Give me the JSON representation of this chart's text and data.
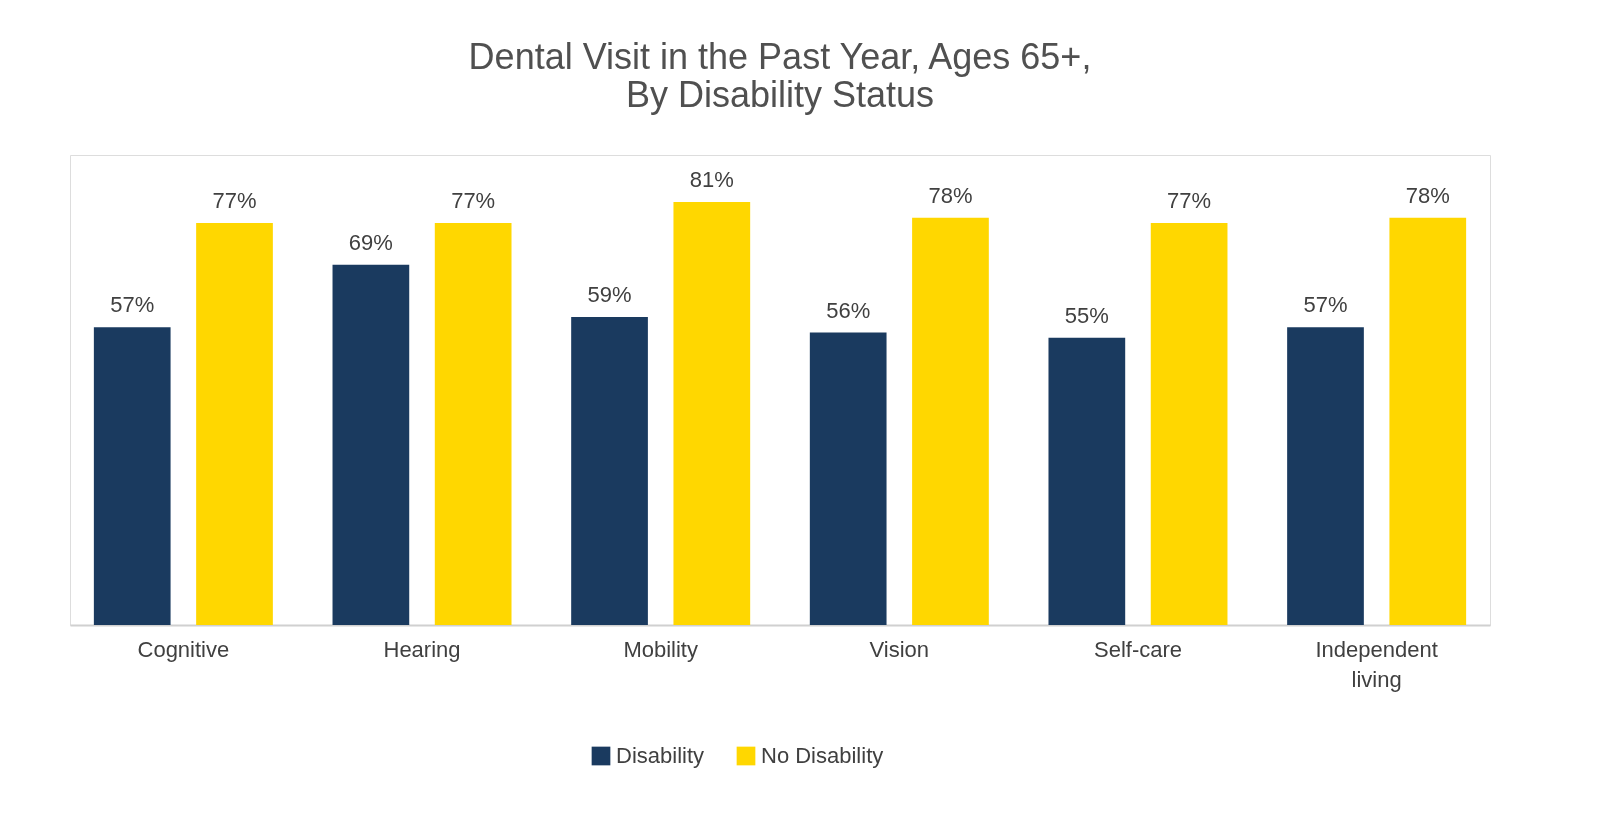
{
  "chart_data": {
    "type": "bar",
    "title": [
      "Dental Visit in the Past Year, Ages 65+,",
      "By Disability Status"
    ],
    "categories": [
      "Cognitive",
      "Hearing",
      "Mobility",
      "Vision",
      "Self-care",
      "Independent living"
    ],
    "series": [
      {
        "name": "Disability",
        "color": "#1a3a5f",
        "values": [
          57,
          69,
          59,
          56,
          55,
          57
        ],
        "value_labels": [
          "57%",
          "69%",
          "59%",
          "56%",
          "55%",
          "57%"
        ]
      },
      {
        "name": "No Disability",
        "color": "#ffd700",
        "values": [
          77,
          77,
          81,
          78,
          77,
          78
        ],
        "value_labels": [
          "77%",
          "77%",
          "81%",
          "78%",
          "77%",
          "78%"
        ]
      }
    ],
    "tick_labels": "x",
    "grid": false,
    "legend": "bottom"
  }
}
